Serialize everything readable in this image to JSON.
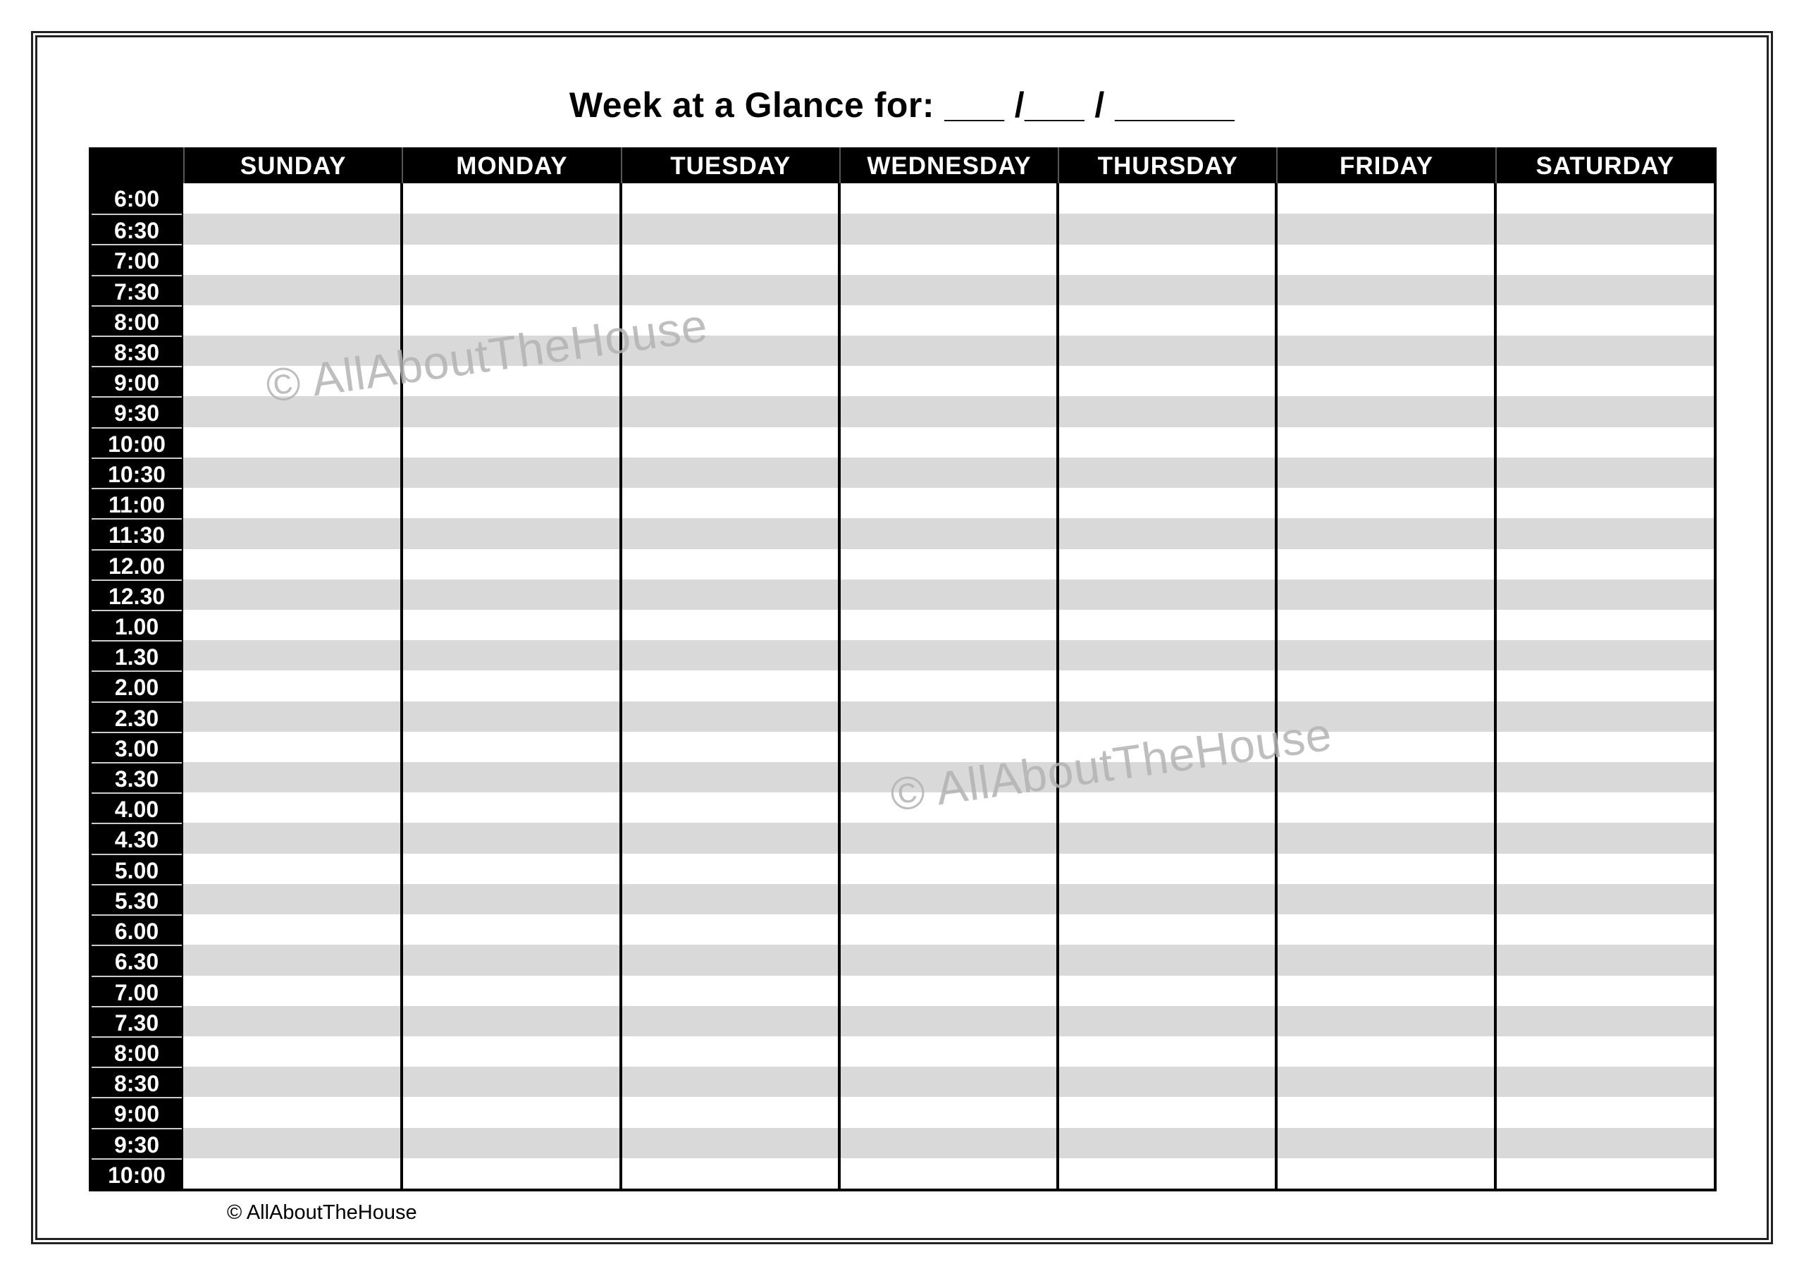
{
  "title": "Week at a Glance for: ___ /___ / ______",
  "days": [
    "SUNDAY",
    "MONDAY",
    "TUESDAY",
    "WEDNESDAY",
    "THURSDAY",
    "FRIDAY",
    "SATURDAY"
  ],
  "times": [
    "6:00",
    "6:30",
    "7:00",
    "7:30",
    "8:00",
    "8:30",
    "9:00",
    "9:30",
    "10:00",
    "10:30",
    "11:00",
    "11:30",
    "12.00",
    "12.30",
    "1.00",
    "1.30",
    "2.00",
    "2.30",
    "3.00",
    "3.30",
    "4.00",
    "4.30",
    "5.00",
    "5.30",
    "6.00",
    "6.30",
    "7.00",
    "7.30",
    "8:00",
    "8:30",
    "9:00",
    "9:30",
    "10:00"
  ],
  "watermark": "© AllAboutTheHouse",
  "footer": "© AllAboutTheHouse",
  "colors": {
    "header_bg": "#000000",
    "stripe": "#d9d9d9",
    "watermark": "#b3b3b3"
  }
}
